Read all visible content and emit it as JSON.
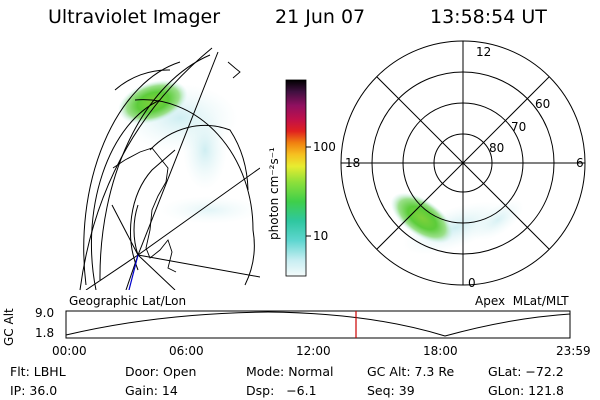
{
  "header": {
    "instrument": "Ultraviolet Imager",
    "date": "21 Jun 07",
    "time": "13:58:54 UT"
  },
  "colorbar": {
    "unit_label": "photon cm⁻²s⁻¹",
    "ticks": [
      "100",
      "10"
    ]
  },
  "left_panel": {
    "label": "Geographic Lat/Lon"
  },
  "right_panel": {
    "label": "Apex  MLat/MLT",
    "mlt_labels": [
      "12",
      "18",
      "6",
      "0"
    ],
    "lat_labels": [
      "60",
      "70",
      "80"
    ]
  },
  "timeline": {
    "y_axis_label": "GC Alt",
    "y_ticks": [
      "9.0",
      "1.8"
    ],
    "x_ticks": [
      "00:00",
      "06:00",
      "12:00",
      "18:00",
      "23:59"
    ]
  },
  "status": {
    "row1": [
      "Flt: LBHL",
      "Door: Open",
      "Mode: Normal",
      "GC Alt: 7.3 Re",
      "GLat: −72.2"
    ],
    "row2": [
      "IP: 36.0",
      "Gain: 14",
      "Dsp:   −6.1",
      "Seq: 39",
      "GLon: 121.8"
    ]
  },
  "colors": {
    "marker": "#cc0000",
    "vector": "#0000cc"
  }
}
